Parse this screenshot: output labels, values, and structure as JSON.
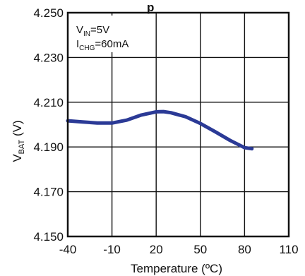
{
  "chart_data": {
    "type": "line",
    "title": "",
    "title_fragment": "p",
    "xlabel": "Temperature (ºC)",
    "ylabel": {
      "main": "V",
      "sub": "BAT",
      "unit": " (V)"
    },
    "xlim": [
      -40,
      110
    ],
    "ylim": [
      4.15,
      4.25
    ],
    "x_ticks": [
      -40,
      -10,
      20,
      50,
      80,
      110
    ],
    "x_tick_labels": [
      "-40",
      "-10",
      "20",
      "50",
      "80",
      "110"
    ],
    "y_ticks": [
      4.15,
      4.17,
      4.19,
      4.21,
      4.23,
      4.25
    ],
    "y_tick_labels": [
      "4.150",
      "4.170",
      "4.190",
      "4.210",
      "4.230",
      "4.250"
    ],
    "grid": true,
    "annotations": [
      {
        "main": "V",
        "sub": "IN",
        "rest": "=5V"
      },
      {
        "main": "I",
        "sub": "CHG",
        "rest": "=60mA"
      }
    ],
    "series": [
      {
        "color": "#2b3a96",
        "x": [
          -40,
          -30,
          -20,
          -10,
          0,
          10,
          20,
          25,
          30,
          40,
          50,
          60,
          70,
          80,
          85
        ],
        "y": [
          4.2017,
          4.2012,
          4.2007,
          4.2007,
          4.202,
          4.2043,
          4.2057,
          4.2058,
          4.2053,
          4.2035,
          4.2005,
          4.1968,
          4.193,
          4.1897,
          4.1892
        ]
      }
    ]
  }
}
